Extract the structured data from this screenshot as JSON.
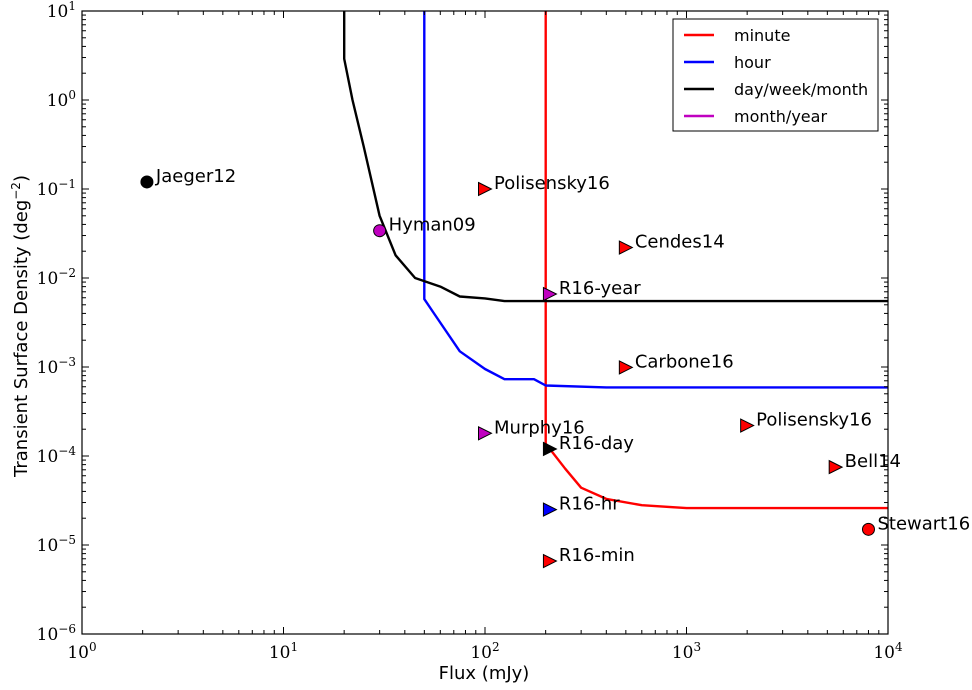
{
  "chart_data": {
    "type": "line",
    "xlabel": "Flux (mJy)",
    "ylabel": "Transient Surface Density (deg",
    "ylabel_exp": "−2",
    "ylabel_close": ")",
    "x_scale": "log",
    "y_scale": "log",
    "xlim": [
      1,
      10000
    ],
    "ylim": [
      1e-06,
      10
    ],
    "x_ticks": [
      {
        "value": 1,
        "base": "10",
        "exp": "0"
      },
      {
        "value": 10,
        "base": "10",
        "exp": "1"
      },
      {
        "value": 100,
        "base": "10",
        "exp": "2"
      },
      {
        "value": 1000,
        "base": "10",
        "exp": "3"
      },
      {
        "value": 10000,
        "base": "10",
        "exp": "4"
      }
    ],
    "y_ticks": [
      {
        "value": 1e-06,
        "base": "10",
        "exp": "−6"
      },
      {
        "value": 1e-05,
        "base": "10",
        "exp": "−5"
      },
      {
        "value": 0.0001,
        "base": "10",
        "exp": "−4"
      },
      {
        "value": 0.001,
        "base": "10",
        "exp": "−3"
      },
      {
        "value": 0.01,
        "base": "10",
        "exp": "−2"
      },
      {
        "value": 0.1,
        "base": "10",
        "exp": "−1"
      },
      {
        "value": 1,
        "base": "10",
        "exp": "0"
      },
      {
        "value": 10,
        "base": "10",
        "exp": "1"
      }
    ],
    "grid": false,
    "legend_position": "top-right",
    "series": [
      {
        "name": "minute",
        "color": "#ff0000",
        "points": [
          [
            200,
            10
          ],
          [
            200,
            0.000138
          ],
          [
            250,
            7.2e-05
          ],
          [
            300,
            4.4e-05
          ],
          [
            400,
            3.3e-05
          ],
          [
            600,
            2.8e-05
          ],
          [
            1000,
            2.6e-05
          ],
          [
            10000,
            2.6e-05
          ]
        ]
      },
      {
        "name": "hour",
        "color": "#0000ff",
        "points": [
          [
            50,
            10
          ],
          [
            50,
            0.0058
          ],
          [
            55,
            0.0042
          ],
          [
            75,
            0.0015
          ],
          [
            100,
            0.00095
          ],
          [
            125,
            0.00073
          ],
          [
            175,
            0.00073
          ],
          [
            200,
            0.00062
          ],
          [
            400,
            0.00059
          ],
          [
            450,
            0.00059
          ],
          [
            10000,
            0.00059
          ]
        ]
      },
      {
        "name": "day/week/month",
        "color": "#000000",
        "points": [
          [
            20,
            10
          ],
          [
            20,
            2.9
          ],
          [
            22,
            1.0
          ],
          [
            25,
            0.3
          ],
          [
            30,
            0.05
          ],
          [
            36,
            0.018
          ],
          [
            45,
            0.01
          ],
          [
            60,
            0.008
          ],
          [
            75,
            0.0062
          ],
          [
            100,
            0.0059
          ],
          [
            125,
            0.0055
          ],
          [
            10000,
            0.0055
          ]
        ]
      },
      {
        "name": "month/year",
        "color": "#c000c0",
        "points": []
      }
    ],
    "points": [
      {
        "label": "Jaeger12",
        "x": 2.1,
        "y": 0.12,
        "marker": "circle",
        "color": "#000000"
      },
      {
        "label": "Hyman09",
        "x": 30,
        "y": 0.034,
        "marker": "circle",
        "color": "#c000c0"
      },
      {
        "label": "Polisensky16",
        "x": 100,
        "y": 0.1,
        "marker": "triangle-right",
        "color": "#ff0000"
      },
      {
        "label": "Cendes14",
        "x": 500,
        "y": 0.022,
        "marker": "triangle-right",
        "color": "#ff0000"
      },
      {
        "label": "R16-year",
        "x": 210,
        "y": 0.0066,
        "marker": "triangle-right",
        "color": "#c000c0"
      },
      {
        "label": "Carbone16",
        "x": 500,
        "y": 0.00099,
        "marker": "triangle-right",
        "color": "#ff0000"
      },
      {
        "label": "Murphy16",
        "x": 100,
        "y": 0.00018,
        "marker": "triangle-right",
        "color": "#c000c0"
      },
      {
        "label": "Polisensky16",
        "x": 2000,
        "y": 0.00022,
        "marker": "triangle-right",
        "color": "#ff0000"
      },
      {
        "label": "R16-day",
        "x": 210,
        "y": 0.00012,
        "marker": "triangle-right",
        "color": "#000000"
      },
      {
        "label": "Bell14",
        "x": 5500,
        "y": 7.5e-05,
        "marker": "triangle-right",
        "color": "#ff0000"
      },
      {
        "label": "R16-hr",
        "x": 210,
        "y": 2.5e-05,
        "marker": "triangle-right",
        "color": "#0000ff"
      },
      {
        "label": "Stewart16",
        "x": 8000,
        "y": 1.5e-05,
        "marker": "circle",
        "color": "#ff0000"
      },
      {
        "label": "R16-min",
        "x": 210,
        "y": 6.6e-06,
        "marker": "triangle-right",
        "color": "#ff0000"
      }
    ]
  }
}
